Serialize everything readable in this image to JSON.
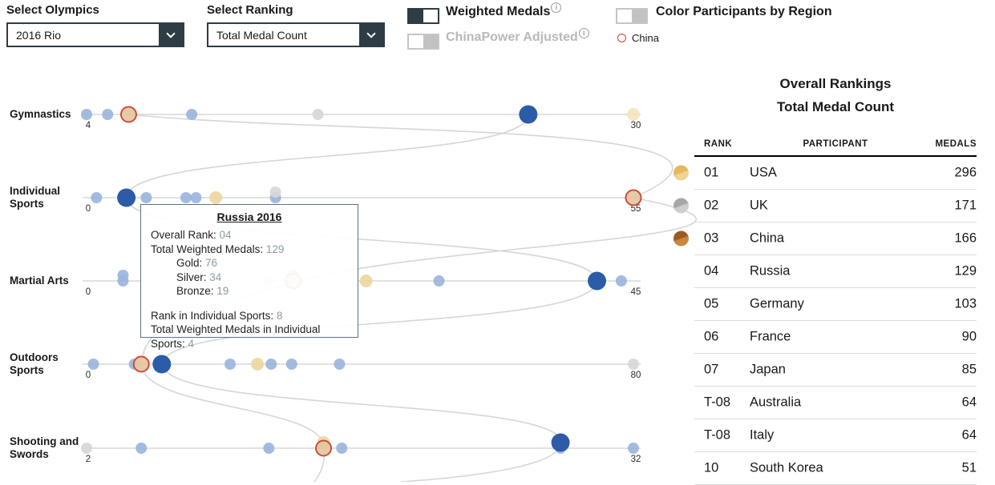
{
  "controls": {
    "select_olympics": {
      "label": "Select Olympics",
      "value": "2016 Rio"
    },
    "select_ranking": {
      "label": "Select Ranking",
      "value": "Total Medal Count"
    },
    "weighted_medals": {
      "label": "Weighted Medals",
      "enabled": true
    },
    "chinapower_adjusted": {
      "label": "ChinaPower Adjusted",
      "enabled": false
    },
    "color_by_region": {
      "label": "Color Participants by Region",
      "enabled": false
    },
    "china_legend_label": "China"
  },
  "tooltip": {
    "title": "Russia 2016",
    "lines": [
      {
        "label": "Overall Rank: ",
        "value": "04"
      },
      {
        "label": "Total Weighted Medals: ",
        "value": "129"
      },
      {
        "label": "Gold: ",
        "value": "76",
        "indent": true
      },
      {
        "label": "Silver: ",
        "value": "34",
        "indent": true
      },
      {
        "label": "Bronze: ",
        "value": "19",
        "indent": true
      },
      {
        "spacer": true
      },
      {
        "label": "Rank in Individual Sports: ",
        "value": "8"
      },
      {
        "label": "Total Weighted Medals in Individual Sports: ",
        "value": "4"
      }
    ]
  },
  "rankings": {
    "title1": "Overall Rankings",
    "title2": "Total Medal Count",
    "columns": [
      "RANK",
      "PARTICIPANT",
      "MEDALS"
    ],
    "rows": [
      {
        "rank": "01",
        "participant": "USA",
        "medals": "296",
        "medal": "gold"
      },
      {
        "rank": "02",
        "participant": "UK",
        "medals": "171",
        "medal": "silver"
      },
      {
        "rank": "03",
        "participant": "China",
        "medals": "166",
        "medal": "bronze"
      },
      {
        "rank": "04",
        "participant": "Russia",
        "medals": "129",
        "medal": "none"
      },
      {
        "rank": "05",
        "participant": "Germany",
        "medals": "103",
        "medal": "none"
      },
      {
        "rank": "06",
        "participant": "France",
        "medals": "90",
        "medal": "none"
      },
      {
        "rank": "07",
        "participant": "Japan",
        "medals": "85",
        "medal": "none"
      },
      {
        "rank": "T-08",
        "participant": "Australia",
        "medals": "64",
        "medal": "none"
      },
      {
        "rank": "T-08",
        "participant": "Italy",
        "medals": "64",
        "medal": "none"
      },
      {
        "rank": "10",
        "participant": "South Korea",
        "medals": "51",
        "medal": "none"
      }
    ]
  },
  "chart_data": {
    "type": "scatter",
    "description": "Dot-strip ranking chart: weighted medal totals per sport group, one axis per sport, dots are countries. Highlighted: Russia (dark blue, hovered), China (red ring), USA (gold), UK (gray).",
    "colors": {
      "blue": "#9bb5dc",
      "darkblue": "#2c5ca8",
      "yellow": "#edd79e",
      "lightyellow": "#f3e5bd",
      "gray": "#d7d7d7",
      "china_fill": "#e4c79e",
      "china_ring": "#cf4b3c",
      "axis": "#cfcfcf"
    },
    "rows": [
      {
        "label": "Gymnastics",
        "min": 4,
        "max": 30,
        "points": [
          {
            "v": 4,
            "c": "blue"
          },
          {
            "v": 5,
            "c": "blue"
          },
          {
            "v": 6,
            "c": "china"
          },
          {
            "v": 9,
            "c": "blue"
          },
          {
            "v": 15,
            "c": "gray"
          },
          {
            "v": 25,
            "c": "darkblue",
            "big": true
          },
          {
            "v": 30,
            "c": "lightyellow"
          }
        ]
      },
      {
        "label": "Individual Sports",
        "min": 0,
        "max": 55,
        "points": [
          {
            "v": 1,
            "c": "blue"
          },
          {
            "v": 4,
            "c": "darkblue",
            "big": true
          },
          {
            "v": 6,
            "c": "blue"
          },
          {
            "v": 10,
            "c": "blue"
          },
          {
            "v": 11,
            "c": "blue"
          },
          {
            "v": 13,
            "c": "yellow"
          },
          {
            "v": 19,
            "c": "blue"
          },
          {
            "v": 19,
            "c": "gray",
            "raised": true
          },
          {
            "v": 55,
            "c": "china"
          }
        ]
      },
      {
        "label": "Martial Arts",
        "min": 0,
        "max": 45,
        "points": [
          {
            "v": 3,
            "c": "blue"
          },
          {
            "v": 3,
            "c": "blue",
            "raised": true
          },
          {
            "v": 15,
            "c": "gray"
          },
          {
            "v": 17,
            "c": "blue",
            "raised": true
          },
          {
            "v": 17,
            "c": "china"
          },
          {
            "v": 23,
            "c": "yellow"
          },
          {
            "v": 29,
            "c": "blue"
          },
          {
            "v": 42,
            "c": "darkblue",
            "big": true
          },
          {
            "v": 44,
            "c": "blue"
          }
        ]
      },
      {
        "label": "Outdoors Sports",
        "min": 0,
        "max": 80,
        "points": [
          {
            "v": 1,
            "c": "blue"
          },
          {
            "v": 7,
            "c": "blue"
          },
          {
            "v": 8,
            "c": "china"
          },
          {
            "v": 11,
            "c": "darkblue",
            "big": true
          },
          {
            "v": 21,
            "c": "blue"
          },
          {
            "v": 25,
            "c": "yellow"
          },
          {
            "v": 27,
            "c": "blue"
          },
          {
            "v": 30,
            "c": "blue"
          },
          {
            "v": 37,
            "c": "blue"
          },
          {
            "v": 80,
            "c": "gray"
          }
        ]
      },
      {
        "label": "Shooting and Swords",
        "min": 2,
        "max": 32,
        "points": [
          {
            "v": 2,
            "c": "gray"
          },
          {
            "v": 5,
            "c": "blue"
          },
          {
            "v": 12,
            "c": "blue"
          },
          {
            "v": 15,
            "c": "yellow",
            "raised": true
          },
          {
            "v": 15,
            "c": "china"
          },
          {
            "v": 16,
            "c": "blue"
          },
          {
            "v": 28,
            "c": "blue"
          },
          {
            "v": 28,
            "c": "darkblue",
            "big": true,
            "raised": true
          },
          {
            "v": 32,
            "c": "blue"
          }
        ]
      }
    ]
  }
}
